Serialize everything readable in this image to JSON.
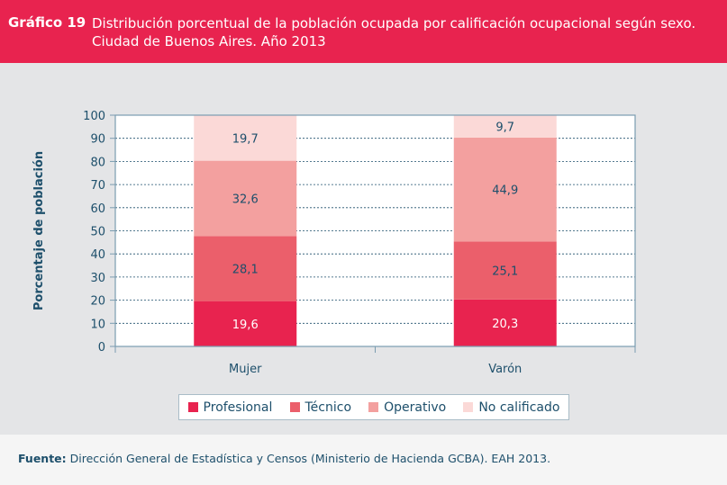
{
  "header": {
    "label": "Gráfico 19",
    "title": "Distribución porcentual de la población ocupada por calificación ocupacional según sexo.",
    "subtitle": "Ciudad de Buenos Aires. Año 2013"
  },
  "footer": {
    "source_label": "Fuente:",
    "source_text": "Dirección General de Estadística y Censos (Ministerio de Hacienda GCBA). EAH 2013."
  },
  "chart_data": {
    "type": "bar",
    "stacked": true,
    "title": "Distribución porcentual de la población ocupada por calificación ocupacional según sexo. Ciudad de Buenos Aires. Año 2013",
    "xlabel": "",
    "ylabel": "Porcentaje de población",
    "ylim": [
      0,
      100
    ],
    "yticks": [
      0,
      10,
      20,
      30,
      40,
      50,
      60,
      70,
      80,
      90,
      100
    ],
    "grid": true,
    "legend": "bottom",
    "categories": [
      "Mujer",
      "Varón"
    ],
    "series": [
      {
        "name": "Profesional",
        "values": [
          19.6,
          20.3
        ],
        "labels": [
          "19,6",
          "20,3"
        ],
        "color": "#e8234f"
      },
      {
        "name": "Técnico",
        "values": [
          28.1,
          25.1
        ],
        "labels": [
          "28,1",
          "25,1"
        ],
        "color": "#eb5f6b"
      },
      {
        "name": "Operativo",
        "values": [
          32.6,
          44.9
        ],
        "labels": [
          "32,6",
          "44,9"
        ],
        "color": "#f3a09f"
      },
      {
        "name": "No calificado",
        "values": [
          19.7,
          9.7
        ],
        "labels": [
          "19,7",
          "9,7"
        ],
        "color": "#fbd9d7"
      }
    ]
  }
}
